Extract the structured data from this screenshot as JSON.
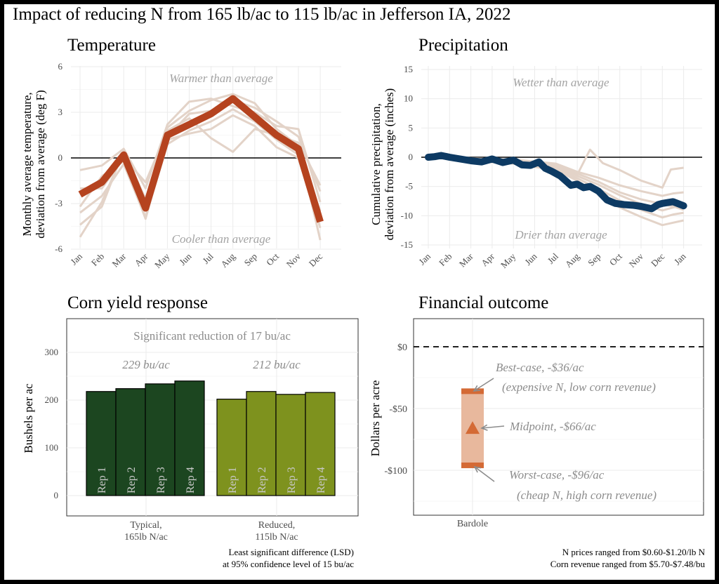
{
  "page_title": "Impact of reducing N from 165 lb/ac to 115 lb/ac in Jefferson IA, 2022",
  "colors": {
    "temp_main": "#b5431f",
    "precip_main": "#0d3a63",
    "background_lines": "#e3d3c8",
    "typical_bar": "#1c4620",
    "reduced_bar": "#7e921e",
    "range_bar": "#e8b89d",
    "range_end": "#d46a35"
  },
  "chart_data": [
    {
      "type": "line",
      "title": "Temperature",
      "ylabel": "Monthly average temperature,\ndeviation from average (deg F)",
      "categories": [
        "Jan",
        "Feb",
        "Mar",
        "Apr",
        "May",
        "Jun",
        "Jul",
        "Aug",
        "Sep",
        "Oct",
        "Nov",
        "Dec"
      ],
      "ylim": [
        -6,
        6
      ],
      "yticks": [
        -6,
        -3,
        0,
        3,
        6
      ],
      "grid": true,
      "annotations": [
        "Warmer than average",
        "Cooler than average"
      ],
      "series": [
        {
          "values": [
            -2.4,
            -1.6,
            0.2,
            -3.3,
            1.5,
            2.2,
            2.9,
            3.9,
            2.7,
            1.5,
            0.6,
            -4.2
          ]
        }
      ],
      "background_series": [
        {
          "values": [
            -5.2,
            -2.9,
            0.4,
            -2.7,
            2.0,
            3.1,
            3.8,
            4.2,
            3.6,
            1.9,
            0.8,
            -5.4
          ]
        },
        {
          "values": [
            -3.6,
            -2.5,
            -0.4,
            -3.9,
            0.9,
            1.8,
            2.4,
            3.2,
            2.4,
            1.2,
            0.2,
            -3.5
          ]
        },
        {
          "values": [
            -0.8,
            -0.5,
            0.6,
            -2.0,
            2.2,
            3.7,
            3.9,
            3.4,
            3.0,
            2.1,
            1.9,
            -2.9
          ]
        },
        {
          "values": [
            -3.2,
            -1.2,
            -0.2,
            -4.0,
            1.2,
            1.6,
            1.9,
            2.8,
            2.1,
            0.7,
            0.0,
            -4.6
          ]
        },
        {
          "values": [
            -2.0,
            -2.0,
            0.0,
            -1.6,
            1.8,
            2.6,
            1.3,
            0.4,
            1.9,
            1.5,
            1.0,
            -1.8
          ]
        },
        {
          "values": [
            -4.4,
            -3.2,
            0.5,
            -3.4,
            1.4,
            2.9,
            3.1,
            3.8,
            3.3,
            2.4,
            1.4,
            -2.2
          ]
        }
      ]
    },
    {
      "type": "line",
      "title": "Precipitation",
      "ylabel": "Cumulative precipitation,\ndeviation from average (inches)",
      "categories": [
        "Jan",
        "Feb",
        "Mar",
        "Apr",
        "May",
        "Jun",
        "Jul",
        "Aug",
        "Sep",
        "Oct",
        "Nov",
        "Dec",
        "Jan"
      ],
      "ylim": [
        -15,
        15
      ],
      "yticks": [
        -15,
        -10,
        -5,
        0,
        5,
        10,
        15
      ],
      "grid": true,
      "annotations": [
        "Wetter than average",
        "Drier than average"
      ],
      "series": [
        {
          "points": [
            [
              0,
              0
            ],
            [
              0.3,
              0.1
            ],
            [
              0.6,
              0.3
            ],
            [
              1,
              0
            ],
            [
              1.5,
              -0.3
            ],
            [
              2,
              -0.6
            ],
            [
              2.5,
              -0.8
            ],
            [
              3,
              -0.3
            ],
            [
              3.5,
              -0.9
            ],
            [
              4,
              -0.5
            ],
            [
              4.4,
              -1.3
            ],
            [
              4.8,
              -1.4
            ],
            [
              5.2,
              -0.8
            ],
            [
              5.5,
              -1.9
            ],
            [
              5.8,
              -2.4
            ],
            [
              6.2,
              -3.2
            ],
            [
              6.7,
              -4.8
            ],
            [
              7,
              -4.6
            ],
            [
              7.3,
              -5.2
            ],
            [
              7.6,
              -5.0
            ],
            [
              8,
              -5.8
            ],
            [
              8.4,
              -7.3
            ],
            [
              8.8,
              -7.9
            ],
            [
              9.2,
              -8.1
            ],
            [
              9.6,
              -8.2
            ],
            [
              10,
              -8.4
            ],
            [
              10.5,
              -8.8
            ],
            [
              10.8,
              -8.1
            ],
            [
              11,
              -7.9
            ],
            [
              11.5,
              -7.6
            ],
            [
              12,
              -8.3
            ]
          ]
        }
      ],
      "background_series": [
        {
          "points": [
            [
              0,
              0
            ],
            [
              2,
              -0.4
            ],
            [
              4,
              -0.6
            ],
            [
              6,
              -1.2
            ],
            [
              7,
              -2.8
            ],
            [
              8,
              -4.2
            ],
            [
              9,
              -6.0
            ],
            [
              10,
              -7.2
            ],
            [
              11,
              -8.0
            ],
            [
              11.5,
              -8.4
            ],
            [
              12,
              -9.0
            ]
          ]
        },
        {
          "points": [
            [
              0,
              0
            ],
            [
              2,
              -0.3
            ],
            [
              4,
              -0.5
            ],
            [
              6,
              -1.5
            ],
            [
              7,
              -3.0
            ],
            [
              7.6,
              1.3
            ],
            [
              8.2,
              -1.0
            ],
            [
              9,
              -2.2
            ],
            [
              10,
              -4.0
            ],
            [
              11,
              -5.2
            ],
            [
              11.4,
              -2.1
            ],
            [
              12,
              -1.8
            ]
          ]
        },
        {
          "points": [
            [
              0,
              0
            ],
            [
              2,
              -0.5
            ],
            [
              4,
              -1.0
            ],
            [
              6,
              -2.0
            ],
            [
              7,
              -3.6
            ],
            [
              8,
              -5.4
            ],
            [
              9,
              -7.4
            ],
            [
              10,
              -9.0
            ],
            [
              11,
              -10.3
            ],
            [
              11.5,
              -9.8
            ],
            [
              12,
              -9.5
            ]
          ]
        },
        {
          "points": [
            [
              0,
              0
            ],
            [
              2,
              -0.6
            ],
            [
              4,
              -1.1
            ],
            [
              6,
              -2.2
            ],
            [
              7,
              -4.0
            ],
            [
              8,
              -6.3
            ],
            [
              9,
              -8.6
            ],
            [
              10,
              -10.2
            ],
            [
              11,
              -11.6
            ],
            [
              11.5,
              -11.2
            ],
            [
              12,
              -10.8
            ]
          ]
        },
        {
          "points": [
            [
              0,
              0
            ],
            [
              2,
              -0.4
            ],
            [
              4,
              -0.8
            ],
            [
              6,
              -1.8
            ],
            [
              7,
              -3.2
            ],
            [
              8,
              -4.7
            ],
            [
              9,
              -6.5
            ],
            [
              10,
              -8.0
            ],
            [
              11,
              -9.1
            ],
            [
              11.5,
              -8.6
            ],
            [
              12,
              -8.2
            ]
          ]
        },
        {
          "points": [
            [
              0,
              0
            ],
            [
              2,
              -0.2
            ],
            [
              4,
              -0.4
            ],
            [
              6,
              -1.1
            ],
            [
              7,
              -2.5
            ],
            [
              8,
              -3.5
            ],
            [
              9,
              -4.8
            ],
            [
              10,
              -5.8
            ],
            [
              11,
              -6.6
            ],
            [
              11.5,
              -6.2
            ],
            [
              12,
              -6.0
            ]
          ]
        }
      ]
    },
    {
      "type": "bar",
      "title": "Corn yield response",
      "ylabel": "Bushels per ac",
      "ylim": [
        0,
        300
      ],
      "yticks": [
        0,
        100,
        200,
        300
      ],
      "grid": true,
      "annotation": "Significant reduction of 17 bu/ac",
      "groups": [
        {
          "name": "Typical,\n165lb N/ac",
          "mean_label": "229 bu/ac",
          "values": [
            218,
            224,
            234,
            240
          ],
          "labels": [
            "Rep 1",
            "Rep 2",
            "Rep 3",
            "Rep 4"
          ]
        },
        {
          "name": "Reduced,\n115lb N/ac",
          "mean_label": "212 bu/ac",
          "values": [
            202,
            218,
            212,
            216
          ],
          "labels": [
            "Rep 1",
            "Rep 2",
            "Rep 3",
            "Rep 4"
          ]
        }
      ],
      "footnote": "Least significant difference (LSD)\nat 95% confidence level of 15 bu/ac"
    },
    {
      "type": "range",
      "title": "Financial outcome",
      "ylabel": "Dollars per acre",
      "ylim": [
        -135,
        10
      ],
      "yticks": [
        0,
        -50,
        -100
      ],
      "yticklabels": [
        "$0",
        "-$50",
        "-$100"
      ],
      "grid": true,
      "categories": [
        "Bardole"
      ],
      "best": -36,
      "mid": -66,
      "worst": -96,
      "annotations": [
        "Best-case, -$36/ac",
        "(expensive N, low corn revenue)",
        "Midpoint, -$66/ac",
        "Worst-case, -$96/ac",
        "(cheap N,  high corn revenue)"
      ],
      "footnote": "N prices ranged from $0.60-$1.20/lb N\nCorn revenue ranged from $5.70-$7.48/bu"
    }
  ]
}
